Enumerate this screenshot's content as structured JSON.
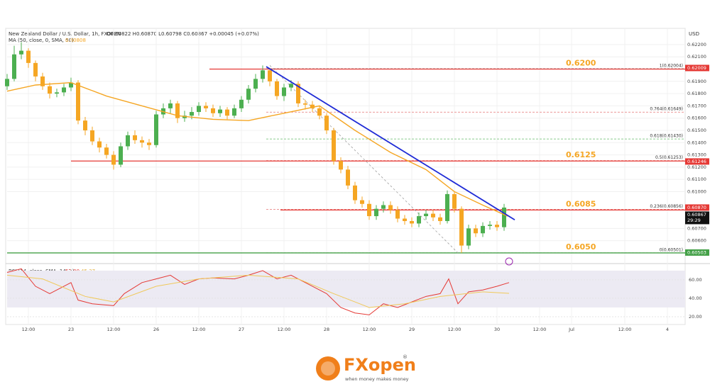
{
  "chart_data": {
    "type": "candlestick",
    "title": "New Zealand Dollar / U.S. Dollar, 1h, FXOPEN",
    "quote": "O0.60822 H0.60870 L0.60798 C0.60867 +0.00045 (+0.07%)",
    "currency": "USD",
    "up_color": "#4caf50",
    "down_color": "#f5a623",
    "x": [
      0,
      2,
      4,
      6,
      8,
      10,
      12,
      14,
      16,
      18,
      20,
      22,
      24,
      26,
      28,
      30,
      32,
      34,
      36,
      38,
      40,
      42,
      44,
      46,
      48,
      50,
      52,
      54,
      56,
      58,
      60,
      62,
      64,
      66,
      68,
      70,
      72,
      74,
      76,
      78,
      80,
      82,
      84,
      86,
      88,
      90,
      92,
      94,
      96,
      98,
      100,
      102,
      104,
      106,
      108,
      110,
      112,
      114,
      116,
      118,
      120,
      122,
      124,
      126,
      128,
      130,
      132,
      134,
      136,
      138,
      140
    ],
    "open": [
      0.6186,
      0.6192,
      0.6212,
      0.6215,
      0.6205,
      0.6194,
      0.6186,
      0.618,
      0.6181,
      0.6185,
      0.6189,
      0.6158,
      0.615,
      0.6141,
      0.6136,
      0.613,
      0.6122,
      0.6137,
      0.6146,
      0.6142,
      0.614,
      0.6138,
      0.6163,
      0.6168,
      0.6172,
      0.616,
      0.6162,
      0.6165,
      0.617,
      0.6168,
      0.6164,
      0.6167,
      0.6162,
      0.6168,
      0.6175,
      0.6184,
      0.6192,
      0.6199,
      0.619,
      0.6178,
      0.6185,
      0.6188,
      0.6172,
      0.6171,
      0.6168,
      0.6162,
      0.615,
      0.6125,
      0.6118,
      0.6105,
      0.6093,
      0.609,
      0.608,
      0.6086,
      0.6089,
      0.6085,
      0.6078,
      0.6076,
      0.6074,
      0.608,
      0.6082,
      0.6079,
      0.6076,
      0.6098,
      0.6086,
      0.6056,
      0.607,
      0.6066,
      0.6072,
      0.6073,
      0.6071
    ],
    "high": [
      0.6196,
      0.6219,
      0.6222,
      0.6217,
      0.6207,
      0.6197,
      0.6189,
      0.6184,
      0.6188,
      0.6193,
      0.6191,
      0.6161,
      0.6153,
      0.6144,
      0.6139,
      0.6133,
      0.614,
      0.6149,
      0.615,
      0.6145,
      0.6143,
      0.6166,
      0.6172,
      0.6175,
      0.6174,
      0.6166,
      0.6169,
      0.6173,
      0.6173,
      0.6171,
      0.617,
      0.6169,
      0.6171,
      0.6178,
      0.6187,
      0.6196,
      0.6203,
      0.6201,
      0.6192,
      0.6188,
      0.6191,
      0.619,
      0.6175,
      0.6174,
      0.617,
      0.6164,
      0.6152,
      0.6128,
      0.6121,
      0.6108,
      0.6096,
      0.6093,
      0.6089,
      0.6092,
      0.6092,
      0.6088,
      0.6081,
      0.6079,
      0.6083,
      0.6085,
      0.6085,
      0.6082,
      0.6101,
      0.61,
      0.6088,
      0.6073,
      0.6073,
      0.6075,
      0.6076,
      0.6076,
      0.609
    ],
    "low": [
      0.6183,
      0.619,
      0.6208,
      0.6201,
      0.619,
      0.6183,
      0.6176,
      0.6177,
      0.6178,
      0.6182,
      0.6155,
      0.6146,
      0.6138,
      0.6132,
      0.6127,
      0.6118,
      0.612,
      0.6134,
      0.6139,
      0.6136,
      0.6134,
      0.6136,
      0.616,
      0.6164,
      0.6156,
      0.6157,
      0.6159,
      0.6162,
      0.6165,
      0.6161,
      0.6161,
      0.6159,
      0.616,
      0.6165,
      0.6172,
      0.6181,
      0.6189,
      0.6186,
      0.6175,
      0.6174,
      0.6182,
      0.6169,
      0.6167,
      0.6165,
      0.6159,
      0.6147,
      0.6122,
      0.6115,
      0.6102,
      0.609,
      0.6087,
      0.6077,
      0.6077,
      0.6083,
      0.6082,
      0.6075,
      0.6073,
      0.6071,
      0.6071,
      0.6077,
      0.6076,
      0.6073,
      0.6074,
      0.6083,
      0.605,
      0.6053,
      0.6063,
      0.6063,
      0.6069,
      0.6068,
      0.6068
    ],
    "close": [
      0.6192,
      0.6212,
      0.6215,
      0.6205,
      0.6194,
      0.6186,
      0.618,
      0.6181,
      0.6185,
      0.6189,
      0.6158,
      0.615,
      0.6141,
      0.6136,
      0.613,
      0.6122,
      0.6137,
      0.6146,
      0.6142,
      0.614,
      0.6138,
      0.6163,
      0.6168,
      0.6172,
      0.616,
      0.6162,
      0.6165,
      0.617,
      0.6168,
      0.6164,
      0.6167,
      0.6162,
      0.6168,
      0.6175,
      0.6184,
      0.6192,
      0.6199,
      0.619,
      0.6178,
      0.6185,
      0.6188,
      0.6172,
      0.6171,
      0.6168,
      0.6162,
      0.615,
      0.6125,
      0.6118,
      0.6105,
      0.6093,
      0.609,
      0.608,
      0.6086,
      0.6089,
      0.6085,
      0.6078,
      0.6076,
      0.6074,
      0.608,
      0.6082,
      0.6079,
      0.6076,
      0.6098,
      0.6086,
      0.6056,
      0.607,
      0.6066,
      0.6072,
      0.6073,
      0.6071,
      0.6087
    ],
    "xlim": [
      0,
      191
    ],
    "xticks": [
      {
        "value": 6,
        "label": "12:00"
      },
      {
        "value": 18,
        "label": "23"
      },
      {
        "value": 30,
        "label": "12:00"
      },
      {
        "value": 42,
        "label": "26"
      },
      {
        "value": 54,
        "label": "12:00"
      },
      {
        "value": 66,
        "label": "27"
      },
      {
        "value": 78,
        "label": "12:00"
      },
      {
        "value": 90,
        "label": "28"
      },
      {
        "value": 102,
        "label": "12:00"
      },
      {
        "value": 114,
        "label": "29"
      },
      {
        "value": 126,
        "label": "12:00"
      },
      {
        "value": 138,
        "label": "30"
      },
      {
        "value": 150,
        "label": "12:00"
      },
      {
        "value": 159,
        "label": "Jul"
      },
      {
        "value": 174,
        "label": "12:00"
      },
      {
        "value": 186,
        "label": "4"
      }
    ],
    "ylim": [
      0.60436,
      0.62321
    ],
    "yticks": [
      {
        "value": 0.622,
        "label": "0.62200"
      },
      {
        "value": 0.621,
        "label": "0.62100"
      },
      {
        "value": 0.619,
        "label": "0.61900"
      },
      {
        "value": 0.618,
        "label": "0.61800"
      },
      {
        "value": 0.617,
        "label": "0.61700"
      },
      {
        "value": 0.616,
        "label": "0.61600"
      },
      {
        "value": 0.615,
        "label": "0.61500"
      },
      {
        "value": 0.614,
        "label": "0.61400"
      },
      {
        "value": 0.613,
        "label": "0.61300"
      },
      {
        "value": 0.612,
        "label": "0.61200"
      },
      {
        "value": 0.611,
        "label": "0.61100"
      },
      {
        "value": 0.61,
        "label": "0.61000"
      },
      {
        "value": 0.607,
        "label": "0.60700"
      },
      {
        "value": 0.606,
        "label": "0.60600"
      }
    ],
    "ma": {
      "name": "MA (50, close, 0, SMA, 50)",
      "last": 0.60808,
      "color": "#f5a623",
      "x": [
        0,
        8,
        18,
        28,
        38,
        48,
        58,
        68,
        78,
        88,
        98,
        108,
        118,
        126,
        134,
        141
      ],
      "values": [
        0.6182,
        0.6187,
        0.6189,
        0.6178,
        0.617,
        0.6162,
        0.6159,
        0.6158,
        0.6164,
        0.617,
        0.615,
        0.6132,
        0.6118,
        0.61,
        0.6089,
        0.608
      ]
    },
    "levels": [
      {
        "value": 0.62,
        "label": "0.6200",
        "color": "#e53935",
        "x_start": 57
      },
      {
        "value": 0.6125,
        "label": "0.6125",
        "color": "#e53935",
        "x_start": 18
      },
      {
        "value": 0.6085,
        "label": "0.6085",
        "color": "#e53935",
        "x_start": 77
      },
      {
        "value": 0.605,
        "label": "0.6050",
        "color": "#43a047",
        "x_start": 0
      }
    ],
    "fib": [
      {
        "value": 0.62004,
        "label": "1(0.62004)",
        "color": "#9e9e9e"
      },
      {
        "value": 0.61649,
        "label": "0.764(0.61649)",
        "color": "#e57373"
      },
      {
        "value": 0.6143,
        "label": "0.618(0.61430)",
        "color": "#66bb6a"
      },
      {
        "value": 0.61253,
        "label": "0.5(0.61253)",
        "color": "#e57373"
      },
      {
        "value": 0.60856,
        "label": "0.236(0.60856)",
        "color": "#e57373"
      },
      {
        "value": 0.60501,
        "label": "0(0.60501)",
        "color": "#9e9e9e"
      }
    ],
    "fib_x_start": 73,
    "trendline": {
      "color": "#1f2bd6",
      "x": [
        73,
        143
      ],
      "values": [
        0.6202,
        0.6077
      ]
    },
    "diagonal": {
      "color": "#9e9e9e",
      "x": [
        74,
        127
      ],
      "values": [
        0.6203,
        0.605
      ]
    },
    "price_tags": [
      {
        "value": 0.62009,
        "label": "0.62009",
        "color": "#e53935"
      },
      {
        "value": 0.61246,
        "label": "0.61246",
        "color": "#e53935"
      },
      {
        "value": 0.6087,
        "label": "0.60870",
        "color": "#e53935"
      },
      {
        "value": 0.60867,
        "label": "0.60867",
        "color": "#111111",
        "countdown": "29:29"
      },
      {
        "value": 0.60503,
        "label": "0.60503",
        "color": "#43a047"
      }
    ],
    "rsi": {
      "name": "RSI (14, close, SMA, 14, 2)",
      "ylim": [
        11.5,
        73
      ],
      "yticks": [
        {
          "value": 60,
          "label": "60.00"
        },
        {
          "value": 40,
          "label": "40.00"
        },
        {
          "value": 20,
          "label": "20.00"
        }
      ],
      "band": [
        30,
        70
      ],
      "series": [
        {
          "color": "#e53935",
          "last": {
            "value": 57,
            "label": "57.00"
          },
          "x": [
            0,
            4,
            8,
            12,
            18,
            20,
            24,
            30,
            33,
            38,
            42,
            46,
            50,
            54,
            58,
            64,
            68,
            72,
            76,
            80,
            84,
            90,
            94,
            98,
            102,
            106,
            110,
            114,
            118,
            122,
            124.4,
            127,
            130,
            134,
            138,
            141.4
          ],
          "values": [
            68,
            72,
            53,
            45,
            57,
            38,
            34,
            32,
            45,
            57,
            61,
            65,
            55,
            61,
            62,
            61,
            65,
            70,
            61,
            65,
            57,
            45,
            30,
            24,
            22,
            34,
            30,
            36,
            42,
            45,
            61,
            34,
            47,
            49,
            53,
            57
          ]
        },
        {
          "color": "#f0c95a",
          "last": 45.37,
          "x": [
            0,
            10,
            22,
            30,
            42,
            54,
            68,
            82,
            92,
            102,
            112,
            122,
            134,
            141.4
          ],
          "values": [
            65,
            61,
            42,
            36,
            53,
            61,
            65,
            61,
            45,
            30,
            34,
            42,
            47,
            45.37
          ]
        }
      ]
    },
    "logo": {
      "brand": "FXopen",
      "mark": "®",
      "tagline": "when money makes money"
    }
  }
}
